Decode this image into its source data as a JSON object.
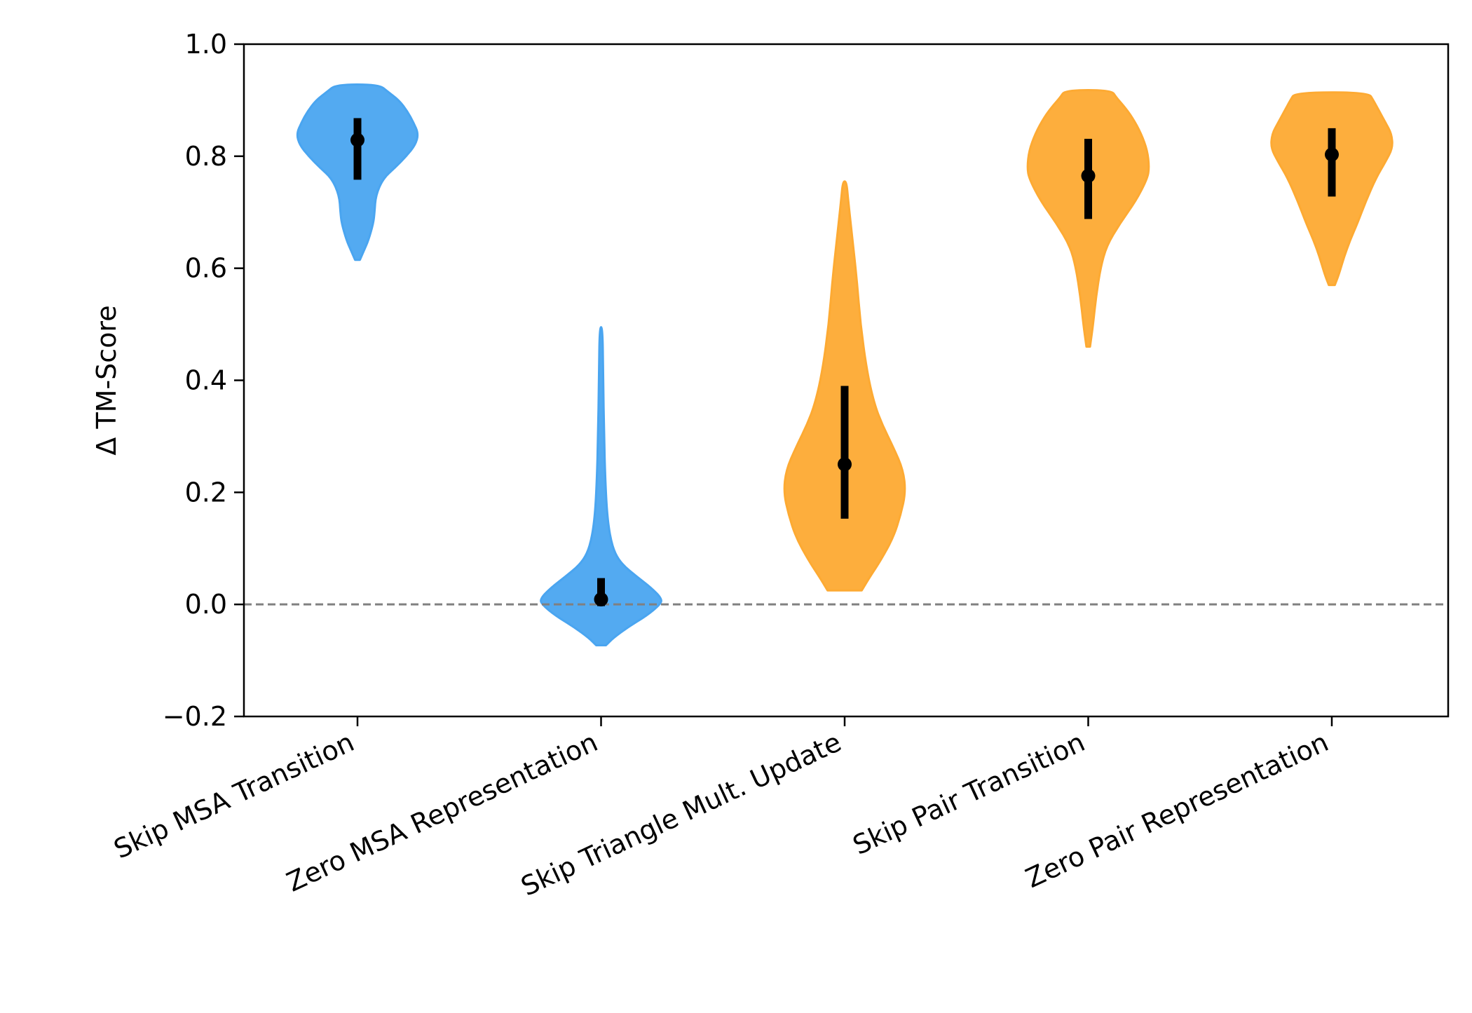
{
  "chart_data": {
    "type": "violin",
    "ylabel": "Δ TM-Score",
    "xlabel": "",
    "title": "",
    "ylim": [
      -0.2,
      1.0
    ],
    "yticks": [
      {
        "value": -0.2,
        "label": "−0.2"
      },
      {
        "value": 0.0,
        "label": "0.0"
      },
      {
        "value": 0.2,
        "label": "0.2"
      },
      {
        "value": 0.4,
        "label": "0.4"
      },
      {
        "value": 0.6,
        "label": "0.6"
      },
      {
        "value": 0.8,
        "label": "0.8"
      },
      {
        "value": 1.0,
        "label": "1.0"
      }
    ],
    "reference_line": {
      "y": 0.0,
      "style": "dashed",
      "color": "#808080"
    },
    "grid": false,
    "legend": "none",
    "colors": {
      "msa": "#4aa5f0",
      "pair": "#fdaa33",
      "interval": "#000000"
    },
    "categories": [
      {
        "label": "Skip MSA Transition",
        "color": "#4aa5f0",
        "min": 0.615,
        "max": 0.928,
        "median": 0.829,
        "q1": 0.758,
        "q3": 0.868,
        "profile": [
          [
            0.615,
            0.04
          ],
          [
            0.63,
            0.1
          ],
          [
            0.65,
            0.18
          ],
          [
            0.68,
            0.26
          ],
          [
            0.7,
            0.28
          ],
          [
            0.73,
            0.3
          ],
          [
            0.76,
            0.42
          ],
          [
            0.78,
            0.62
          ],
          [
            0.8,
            0.8
          ],
          [
            0.82,
            0.95
          ],
          [
            0.84,
            1.0
          ],
          [
            0.86,
            0.92
          ],
          [
            0.88,
            0.82
          ],
          [
            0.9,
            0.68
          ],
          [
            0.915,
            0.5
          ],
          [
            0.928,
            0.35
          ]
        ]
      },
      {
        "label": "Zero MSA Representation",
        "color": "#4aa5f0",
        "min": -0.073,
        "max": 0.495,
        "median": 0.009,
        "q1": -0.003,
        "q3": 0.047,
        "profile": [
          [
            -0.073,
            0.08
          ],
          [
            -0.06,
            0.2
          ],
          [
            -0.04,
            0.45
          ],
          [
            -0.02,
            0.75
          ],
          [
            0.0,
            0.97
          ],
          [
            0.01,
            1.0
          ],
          [
            0.03,
            0.82
          ],
          [
            0.05,
            0.58
          ],
          [
            0.07,
            0.36
          ],
          [
            0.09,
            0.23
          ],
          [
            0.12,
            0.15
          ],
          [
            0.16,
            0.1
          ],
          [
            0.22,
            0.07
          ],
          [
            0.3,
            0.05
          ],
          [
            0.4,
            0.035
          ],
          [
            0.495,
            0.025
          ]
        ]
      },
      {
        "label": "Skip Triangle Mult. Update",
        "color": "#fdaa33",
        "min": 0.025,
        "max": 0.755,
        "median": 0.25,
        "q1": 0.153,
        "q3": 0.39,
        "profile": [
          [
            0.025,
            0.28
          ],
          [
            0.05,
            0.42
          ],
          [
            0.08,
            0.6
          ],
          [
            0.12,
            0.8
          ],
          [
            0.16,
            0.92
          ],
          [
            0.2,
            1.0
          ],
          [
            0.24,
            0.96
          ],
          [
            0.28,
            0.8
          ],
          [
            0.32,
            0.62
          ],
          [
            0.36,
            0.48
          ],
          [
            0.42,
            0.36
          ],
          [
            0.5,
            0.26
          ],
          [
            0.58,
            0.2
          ],
          [
            0.66,
            0.12
          ],
          [
            0.72,
            0.06
          ],
          [
            0.755,
            0.03
          ]
        ]
      },
      {
        "label": "Skip Pair Transition",
        "color": "#fdaa33",
        "min": 0.46,
        "max": 0.918,
        "median": 0.765,
        "q1": 0.688,
        "q3": 0.831,
        "profile": [
          [
            0.46,
            0.03
          ],
          [
            0.5,
            0.08
          ],
          [
            0.55,
            0.13
          ],
          [
            0.6,
            0.2
          ],
          [
            0.64,
            0.3
          ],
          [
            0.68,
            0.52
          ],
          [
            0.72,
            0.78
          ],
          [
            0.76,
            0.97
          ],
          [
            0.78,
            1.0
          ],
          [
            0.81,
            0.97
          ],
          [
            0.84,
            0.87
          ],
          [
            0.87,
            0.72
          ],
          [
            0.89,
            0.58
          ],
          [
            0.905,
            0.46
          ],
          [
            0.918,
            0.38
          ]
        ]
      },
      {
        "label": "Zero Pair Representation",
        "color": "#fdaa33",
        "min": 0.57,
        "max": 0.914,
        "median": 0.803,
        "q1": 0.728,
        "q3": 0.85,
        "profile": [
          [
            0.57,
            0.05
          ],
          [
            0.59,
            0.12
          ],
          [
            0.62,
            0.2
          ],
          [
            0.65,
            0.3
          ],
          [
            0.68,
            0.42
          ],
          [
            0.72,
            0.56
          ],
          [
            0.76,
            0.72
          ],
          [
            0.79,
            0.88
          ],
          [
            0.815,
            1.0
          ],
          [
            0.84,
            0.98
          ],
          [
            0.86,
            0.88
          ],
          [
            0.88,
            0.78
          ],
          [
            0.9,
            0.68
          ],
          [
            0.914,
            0.6
          ]
        ]
      }
    ]
  }
}
